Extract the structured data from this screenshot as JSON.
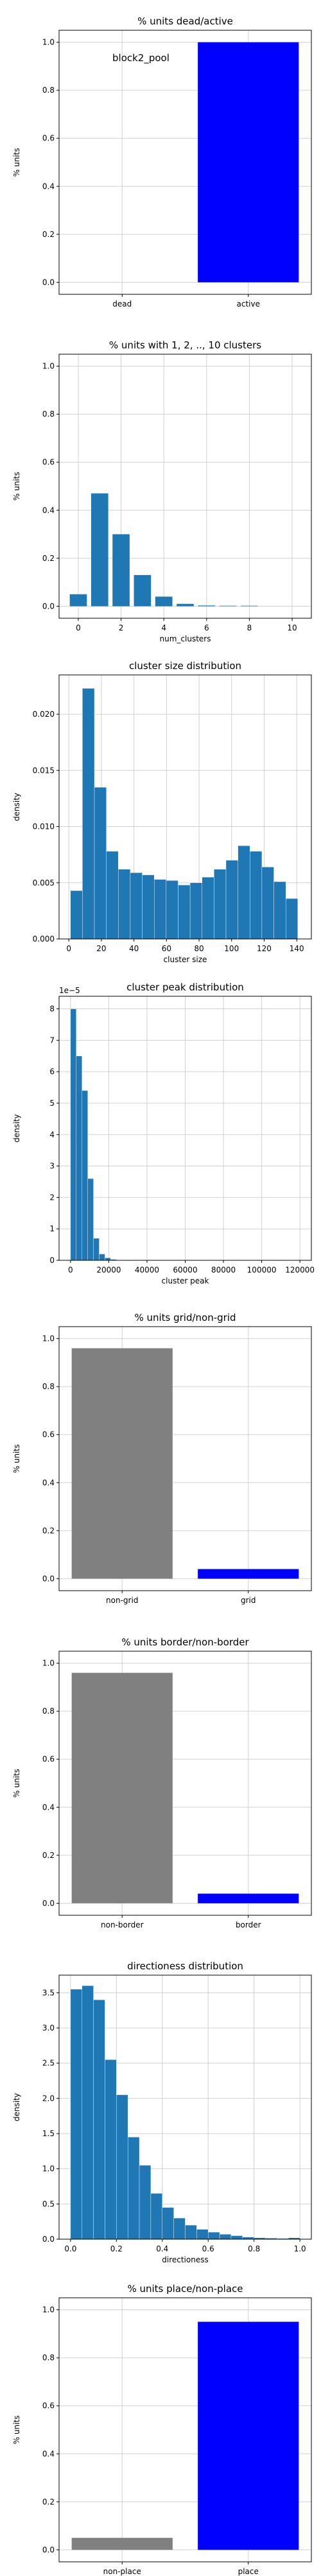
{
  "figure_annotation": "block2_pool",
  "chart_data": [
    {
      "id": "dead-active",
      "type": "bar",
      "title": "% units dead/active",
      "xlabel": "",
      "ylabel": "% units",
      "categories": [
        "dead",
        "active"
      ],
      "values": [
        0.0,
        1.0
      ],
      "colors": [
        "#808080",
        "#0000ff"
      ],
      "ylim": [
        -0.05,
        1.05
      ],
      "yticks": [
        0.0,
        0.2,
        0.4,
        0.6,
        0.8,
        1.0
      ],
      "yticklabels": [
        "0.0",
        "0.2",
        "0.4",
        "0.6",
        "0.8",
        "1.0"
      ],
      "grid": true
    },
    {
      "id": "num-clusters",
      "type": "bar",
      "title": "% units with 1, 2, .., 10 clusters",
      "xlabel": "num_clusters",
      "ylabel": "% units",
      "x": [
        0,
        1,
        2,
        3,
        4,
        5,
        6,
        7,
        8,
        9,
        10
      ],
      "values": [
        0.05,
        0.47,
        0.3,
        0.13,
        0.04,
        0.01,
        0.003,
        0.002,
        0.002,
        0.0,
        0.0
      ],
      "color": "#1f77b4",
      "xlim": [
        -0.9,
        10.9
      ],
      "ylim": [
        -0.05,
        1.05
      ],
      "xticks": [
        0,
        2,
        4,
        6,
        8,
        10
      ],
      "xticklabels": [
        "0",
        "2",
        "4",
        "6",
        "8",
        "10"
      ],
      "yticks": [
        0.0,
        0.2,
        0.4,
        0.6,
        0.8,
        1.0
      ],
      "yticklabels": [
        "0.0",
        "0.2",
        "0.4",
        "0.6",
        "0.8",
        "1.0"
      ],
      "grid": true
    },
    {
      "id": "cluster-size",
      "type": "histogram",
      "title": "cluster size distribution",
      "xlabel": "cluster size",
      "ylabel": "density",
      "bins_start": 1,
      "bin_width": 7.35,
      "values": [
        0.0043,
        0.0223,
        0.0135,
        0.0078,
        0.0062,
        0.0059,
        0.0057,
        0.0053,
        0.0052,
        0.0048,
        0.005,
        0.0055,
        0.0062,
        0.007,
        0.0083,
        0.0078,
        0.0064,
        0.0051,
        0.0036
      ],
      "color": "#1f77b4",
      "xlim": [
        -6,
        149
      ],
      "ylim": [
        0,
        0.0235
      ],
      "xticks": [
        0,
        20,
        40,
        60,
        80,
        100,
        120,
        140
      ],
      "xticklabels": [
        "0",
        "20",
        "40",
        "60",
        "80",
        "100",
        "120",
        "140"
      ],
      "yticks": [
        0.0,
        0.005,
        0.01,
        0.015,
        0.02
      ],
      "yticklabels": [
        "0.000",
        "0.005",
        "0.010",
        "0.015",
        "0.020"
      ],
      "grid": true
    },
    {
      "id": "cluster-peak",
      "type": "histogram",
      "title": "cluster peak distribution",
      "xlabel": "cluster peak",
      "ylabel": "density",
      "offset_text": "1e−5",
      "bins_start": 0,
      "bin_width": 3000,
      "values": [
        8.0,
        6.5,
        5.4,
        2.6,
        0.7,
        0.2,
        0.08,
        0.03,
        0.0,
        0.0,
        0.0,
        0.0,
        0.0,
        0.0,
        0.0,
        0.0,
        0.0,
        0.0,
        0.0,
        0.0,
        0.0,
        0.0,
        0.0,
        0.0,
        0.0,
        0.0,
        0.0,
        0.0,
        0.0,
        0.0,
        0.0,
        0.0,
        0.0,
        0.0,
        0.0,
        0.0,
        0.0,
        0.0,
        0.0,
        0.005
      ],
      "color": "#1f77b4",
      "xlim": [
        -6000,
        126000
      ],
      "ylim": [
        0,
        8.4
      ],
      "xticks": [
        0,
        20000,
        40000,
        60000,
        80000,
        100000,
        120000
      ],
      "xticklabels": [
        "0",
        "20000",
        "40000",
        "60000",
        "80000",
        "100000",
        "120000"
      ],
      "yticks": [
        0,
        1,
        2,
        3,
        4,
        5,
        6,
        7,
        8
      ],
      "yticklabels": [
        "0",
        "1",
        "2",
        "3",
        "4",
        "5",
        "6",
        "7",
        "8"
      ],
      "grid": true
    },
    {
      "id": "grid-nongrid",
      "type": "bar",
      "title": "% units grid/non-grid",
      "xlabel": "",
      "ylabel": "% units",
      "categories": [
        "non-grid",
        "grid"
      ],
      "values": [
        0.96,
        0.04
      ],
      "colors": [
        "#808080",
        "#0000ff"
      ],
      "ylim": [
        -0.05,
        1.05
      ],
      "yticks": [
        0.0,
        0.2,
        0.4,
        0.6,
        0.8,
        1.0
      ],
      "yticklabels": [
        "0.0",
        "0.2",
        "0.4",
        "0.6",
        "0.8",
        "1.0"
      ],
      "grid": true
    },
    {
      "id": "border-nonborder",
      "type": "bar",
      "title": "% units border/non-border",
      "xlabel": "",
      "ylabel": "% units",
      "categories": [
        "non-border",
        "border"
      ],
      "values": [
        0.96,
        0.04
      ],
      "colors": [
        "#808080",
        "#0000ff"
      ],
      "ylim": [
        -0.05,
        1.05
      ],
      "yticks": [
        0.0,
        0.2,
        0.4,
        0.6,
        0.8,
        1.0
      ],
      "yticklabels": [
        "0.0",
        "0.2",
        "0.4",
        "0.6",
        "0.8",
        "1.0"
      ],
      "grid": true
    },
    {
      "id": "directioness",
      "type": "histogram",
      "title": "directioness distribution",
      "xlabel": "directioness",
      "ylabel": "density",
      "bins_start": 0,
      "bin_width": 0.05,
      "values": [
        3.55,
        3.6,
        3.4,
        2.55,
        2.05,
        1.45,
        1.05,
        0.65,
        0.45,
        0.3,
        0.2,
        0.14,
        0.1,
        0.07,
        0.05,
        0.03,
        0.02,
        0.015,
        0.01,
        0.02
      ],
      "color": "#1f77b4",
      "xlim": [
        -0.05,
        1.05
      ],
      "ylim": [
        0,
        3.75
      ],
      "xticks": [
        0.0,
        0.2,
        0.4,
        0.6,
        0.8,
        1.0
      ],
      "xticklabels": [
        "0.0",
        "0.2",
        "0.4",
        "0.6",
        "0.8",
        "1.0"
      ],
      "yticks": [
        0.0,
        0.5,
        1.0,
        1.5,
        2.0,
        2.5,
        3.0,
        3.5
      ],
      "yticklabels": [
        "0.0",
        "0.5",
        "1.0",
        "1.5",
        "2.0",
        "2.5",
        "3.0",
        "3.5"
      ],
      "grid": true
    },
    {
      "id": "place-nonplace",
      "type": "bar",
      "title": "% units place/non-place",
      "xlabel": "",
      "ylabel": "% units",
      "categories": [
        "non-place",
        "place"
      ],
      "values": [
        0.05,
        0.95
      ],
      "colors": [
        "#808080",
        "#0000ff"
      ],
      "ylim": [
        -0.05,
        1.05
      ],
      "yticks": [
        0.0,
        0.2,
        0.4,
        0.6,
        0.8,
        1.0
      ],
      "yticklabels": [
        "0.0",
        "0.2",
        "0.4",
        "0.6",
        "0.8",
        "1.0"
      ],
      "grid": true
    }
  ]
}
